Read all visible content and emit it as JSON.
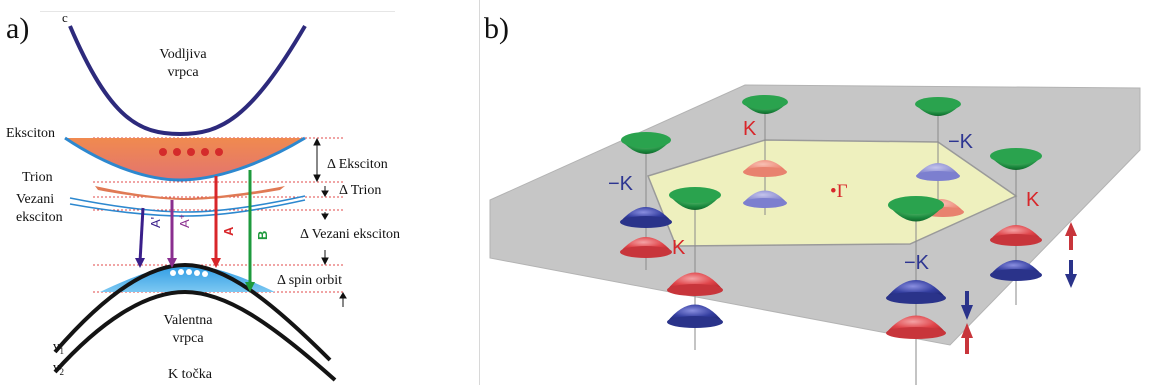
{
  "panel_a": {
    "letter": "a)",
    "conduction_band": "Vodljiva\nvrpca",
    "c_label": "c",
    "exciton": "Eksciton",
    "trion": "Trion",
    "bound_exciton": "Vezani\neksciton",
    "delta_exciton": "Δ Eksciton",
    "delta_trion": "Δ Trion",
    "delta_bound": "Δ Vezani eksciton",
    "delta_spin": "Δ spin orbit",
    "valence_band": "Valentna\nvrpca",
    "k_point": "K točka",
    "v1": "v",
    "v1_sub": "1",
    "v2": "v",
    "v2_sub": "2",
    "arrows": [
      {
        "label": "A'",
        "sup": "",
        "color": "#3a1f8a"
      },
      {
        "label": "A",
        "sup": "+",
        "color": "#8a2f8f"
      },
      {
        "label": "A",
        "sup": "",
        "color": "#d8262a"
      },
      {
        "label": "B",
        "sup": "",
        "color": "#1e9a3c"
      }
    ],
    "colors": {
      "conduction": "#2d2a7c",
      "valence": "#141414",
      "exciton_band": "#e9835a",
      "hole": "#3aa6e8",
      "electron": "#d42b2b",
      "dotted": "#e04848"
    }
  },
  "panel_b": {
    "letter": "b)",
    "gamma": "•Γ",
    "valleys": [
      {
        "label": "K",
        "color": "#d8262a"
      },
      {
        "label": "−K",
        "color": "#2d3591"
      },
      {
        "label": "−K",
        "color": "#2d3591"
      },
      {
        "label": "K",
        "color": "#d8262a"
      },
      {
        "label": "K",
        "color": "#d8262a"
      },
      {
        "label": "−K",
        "color": "#2d3591"
      }
    ],
    "colors": {
      "plane": "#c6c6c6",
      "hexagon": "#eef0be",
      "green_cone": "#17853a",
      "red_cone": "#dd3f44",
      "blue_cone": "#2c3590"
    }
  }
}
